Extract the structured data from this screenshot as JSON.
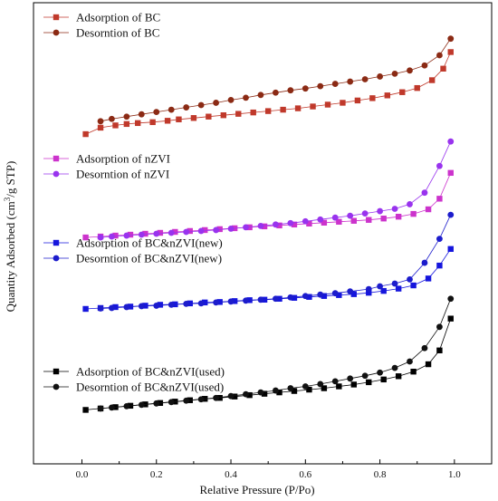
{
  "chart_data": {
    "type": "scatter",
    "xlabel": "Relative Pressure (P/Po)",
    "ylabel_parts": [
      "Quantity Adsorbed (cm",
      "3",
      "/g STP)"
    ],
    "xlim": [
      -0.13,
      1.1
    ],
    "ylim": [
      0,
      100
    ],
    "x_ticks": [
      {
        "value": 0.0,
        "label": "0.0"
      },
      {
        "value": 0.2,
        "label": "0.2"
      },
      {
        "value": 0.4,
        "label": "0.4"
      },
      {
        "value": 0.6,
        "label": "0.6"
      },
      {
        "value": 0.8,
        "label": "0.8"
      },
      {
        "value": 1.0,
        "label": "1.0"
      }
    ],
    "y_ticks_labeled": false,
    "colors": {
      "bc": "#c0392b",
      "nzvi": "#cc33cc",
      "new": "#1515dd",
      "used": "#000000"
    },
    "series": [
      {
        "name": "Adsorption of BC",
        "color": "#c0392b",
        "marker": "square",
        "x": [
          0.01,
          0.05,
          0.09,
          0.12,
          0.15,
          0.19,
          0.23,
          0.26,
          0.3,
          0.34,
          0.38,
          0.42,
          0.46,
          0.5,
          0.54,
          0.58,
          0.62,
          0.66,
          0.7,
          0.74,
          0.78,
          0.82,
          0.86,
          0.9,
          0.94,
          0.97,
          0.99
        ],
        "y": [
          71.5,
          72.9,
          73.4,
          73.7,
          73.9,
          74.1,
          74.4,
          74.7,
          75,
          75.3,
          75.6,
          75.9,
          76.2,
          76.5,
          76.8,
          77.1,
          77.5,
          77.9,
          78.3,
          78.8,
          79.3,
          79.9,
          80.6,
          81.5,
          83.2,
          85.7,
          89.3
        ]
      },
      {
        "name": "Desorntion of BC",
        "color": "#8b2a14",
        "marker": "circle",
        "x": [
          0.99,
          0.96,
          0.92,
          0.88,
          0.84,
          0.8,
          0.76,
          0.72,
          0.68,
          0.64,
          0.6,
          0.56,
          0.52,
          0.48,
          0.44,
          0.4,
          0.36,
          0.32,
          0.28,
          0.24,
          0.2,
          0.16,
          0.12,
          0.08,
          0.05
        ],
        "y": [
          92.2,
          88.6,
          86.4,
          85.3,
          84.6,
          84,
          83.4,
          82.9,
          82.4,
          81.9,
          81.4,
          81,
          80.5,
          80,
          79.4,
          78.9,
          78.3,
          77.8,
          77.3,
          76.8,
          76.3,
          75.8,
          75.3,
          74.8,
          74.3
        ]
      },
      {
        "name": "Adsorption of nZVI",
        "color": "#cc33cc",
        "marker": "square",
        "x": [
          0.01,
          0.05,
          0.09,
          0.13,
          0.17,
          0.21,
          0.25,
          0.29,
          0.33,
          0.37,
          0.41,
          0.45,
          0.49,
          0.53,
          0.57,
          0.61,
          0.65,
          0.69,
          0.73,
          0.77,
          0.81,
          0.85,
          0.89,
          0.93,
          0.96,
          0.99
        ],
        "y": [
          49.1,
          49.3,
          49.5,
          49.7,
          49.9,
          50.1,
          50.3,
          50.5,
          50.7,
          50.9,
          51.1,
          51.3,
          51.5,
          51.7,
          51.9,
          52.1,
          52.3,
          52.5,
          52.7,
          52.9,
          53.2,
          53.6,
          54.2,
          55.2,
          57.5,
          63.1
        ]
      },
      {
        "name": "Desorntion of nZVI",
        "color": "#9933ee",
        "marker": "circle",
        "x": [
          0.99,
          0.96,
          0.92,
          0.88,
          0.84,
          0.8,
          0.76,
          0.72,
          0.68,
          0.64,
          0.6,
          0.56,
          0.52,
          0.48,
          0.44,
          0.4,
          0.36,
          0.32,
          0.28,
          0.24,
          0.2,
          0.16,
          0.12,
          0.08,
          0.05
        ],
        "y": [
          69.9,
          64.6,
          58.8,
          56.3,
          55.3,
          54.8,
          54.3,
          53.8,
          53.4,
          53,
          52.6,
          52.2,
          51.9,
          51.6,
          51.3,
          51,
          50.7,
          50.5,
          50.3,
          50.1,
          49.9,
          49.7,
          49.5,
          49.3,
          49.1
        ]
      },
      {
        "name": "Adsorption of BC&nZVI(new)",
        "color": "#1515dd",
        "marker": "square",
        "x": [
          0.01,
          0.05,
          0.09,
          0.13,
          0.17,
          0.21,
          0.25,
          0.29,
          0.33,
          0.37,
          0.41,
          0.45,
          0.49,
          0.53,
          0.57,
          0.61,
          0.65,
          0.69,
          0.73,
          0.77,
          0.81,
          0.85,
          0.89,
          0.93,
          0.96,
          0.99
        ],
        "y": [
          33.6,
          33.8,
          34,
          34.1,
          34.3,
          34.5,
          34.6,
          34.8,
          35,
          35.1,
          35.3,
          35.5,
          35.6,
          35.8,
          36,
          36.2,
          36.4,
          36.6,
          36.8,
          37.1,
          37.5,
          38,
          38.7,
          40.2,
          43,
          46.6
        ]
      },
      {
        "name": "Desorntion of BC&nZVI(new)",
        "color": "#1c1ccc",
        "marker": "circle",
        "x": [
          0.99,
          0.96,
          0.92,
          0.88,
          0.84,
          0.8,
          0.77,
          0.72,
          0.68,
          0.64,
          0.6,
          0.56,
          0.52,
          0.48,
          0.44,
          0.4,
          0.36,
          0.32,
          0.28,
          0.24,
          0.2,
          0.16,
          0.12,
          0.08,
          0.05
        ],
        "y": [
          54,
          48.8,
          43.6,
          40,
          39.1,
          38.5,
          37.9,
          37.4,
          37,
          36.7,
          36.4,
          36.1,
          35.8,
          35.6,
          35.4,
          35.2,
          35,
          34.8,
          34.7,
          34.5,
          34.3,
          34.2,
          34,
          33.8,
          33.7
        ]
      },
      {
        "name": "Adsorption of BC&nZVI(used)",
        "color": "#000000",
        "marker": "square",
        "x": [
          0.01,
          0.05,
          0.09,
          0.13,
          0.17,
          0.21,
          0.25,
          0.29,
          0.33,
          0.37,
          0.41,
          0.45,
          0.49,
          0.53,
          0.57,
          0.61,
          0.65,
          0.69,
          0.73,
          0.77,
          0.81,
          0.85,
          0.89,
          0.93,
          0.96,
          0.99
        ],
        "y": [
          11.7,
          12,
          12.3,
          12.6,
          12.9,
          13.2,
          13.5,
          13.8,
          14.1,
          14.3,
          14.6,
          14.9,
          15.2,
          15.5,
          15.8,
          16.1,
          16.4,
          16.8,
          17.2,
          17.7,
          18.3,
          19,
          20,
          21.6,
          24.6,
          31.5
        ]
      },
      {
        "name": "Desorntion of BC&nZVI(used)",
        "color": "#111111",
        "marker": "circle",
        "x": [
          0.99,
          0.96,
          0.92,
          0.88,
          0.84,
          0.8,
          0.76,
          0.72,
          0.68,
          0.64,
          0.6,
          0.56,
          0.52,
          0.48,
          0.44,
          0.4,
          0.36,
          0.32,
          0.28,
          0.24,
          0.2,
          0.16,
          0.12,
          0.08,
          0.05
        ],
        "y": [
          35.8,
          29.7,
          25.1,
          22.2,
          20.8,
          19.8,
          19.1,
          18.5,
          17.9,
          17.3,
          16.8,
          16.4,
          15.9,
          15.5,
          15.1,
          14.7,
          14.3,
          14,
          13.7,
          13.4,
          13.1,
          12.8,
          12.5,
          12.2,
          12
        ]
      }
    ],
    "legends": [
      {
        "position": "top-left",
        "items": [
          "Adsorption of BC",
          "Desorntion of BC"
        ]
      },
      {
        "position": "upper-middle-left",
        "items": [
          "Adsorption of nZVI",
          "Desorntion of nZVI"
        ]
      },
      {
        "position": "middle-left",
        "items": [
          "Adsorption of BC&nZVI(new)",
          "Desorntion of BC&nZVI(new)"
        ]
      },
      {
        "position": "lower-left",
        "items": [
          "Adsorption of BC&nZVI(used)",
          "Desorntion of BC&nZVI(used)"
        ]
      }
    ]
  }
}
